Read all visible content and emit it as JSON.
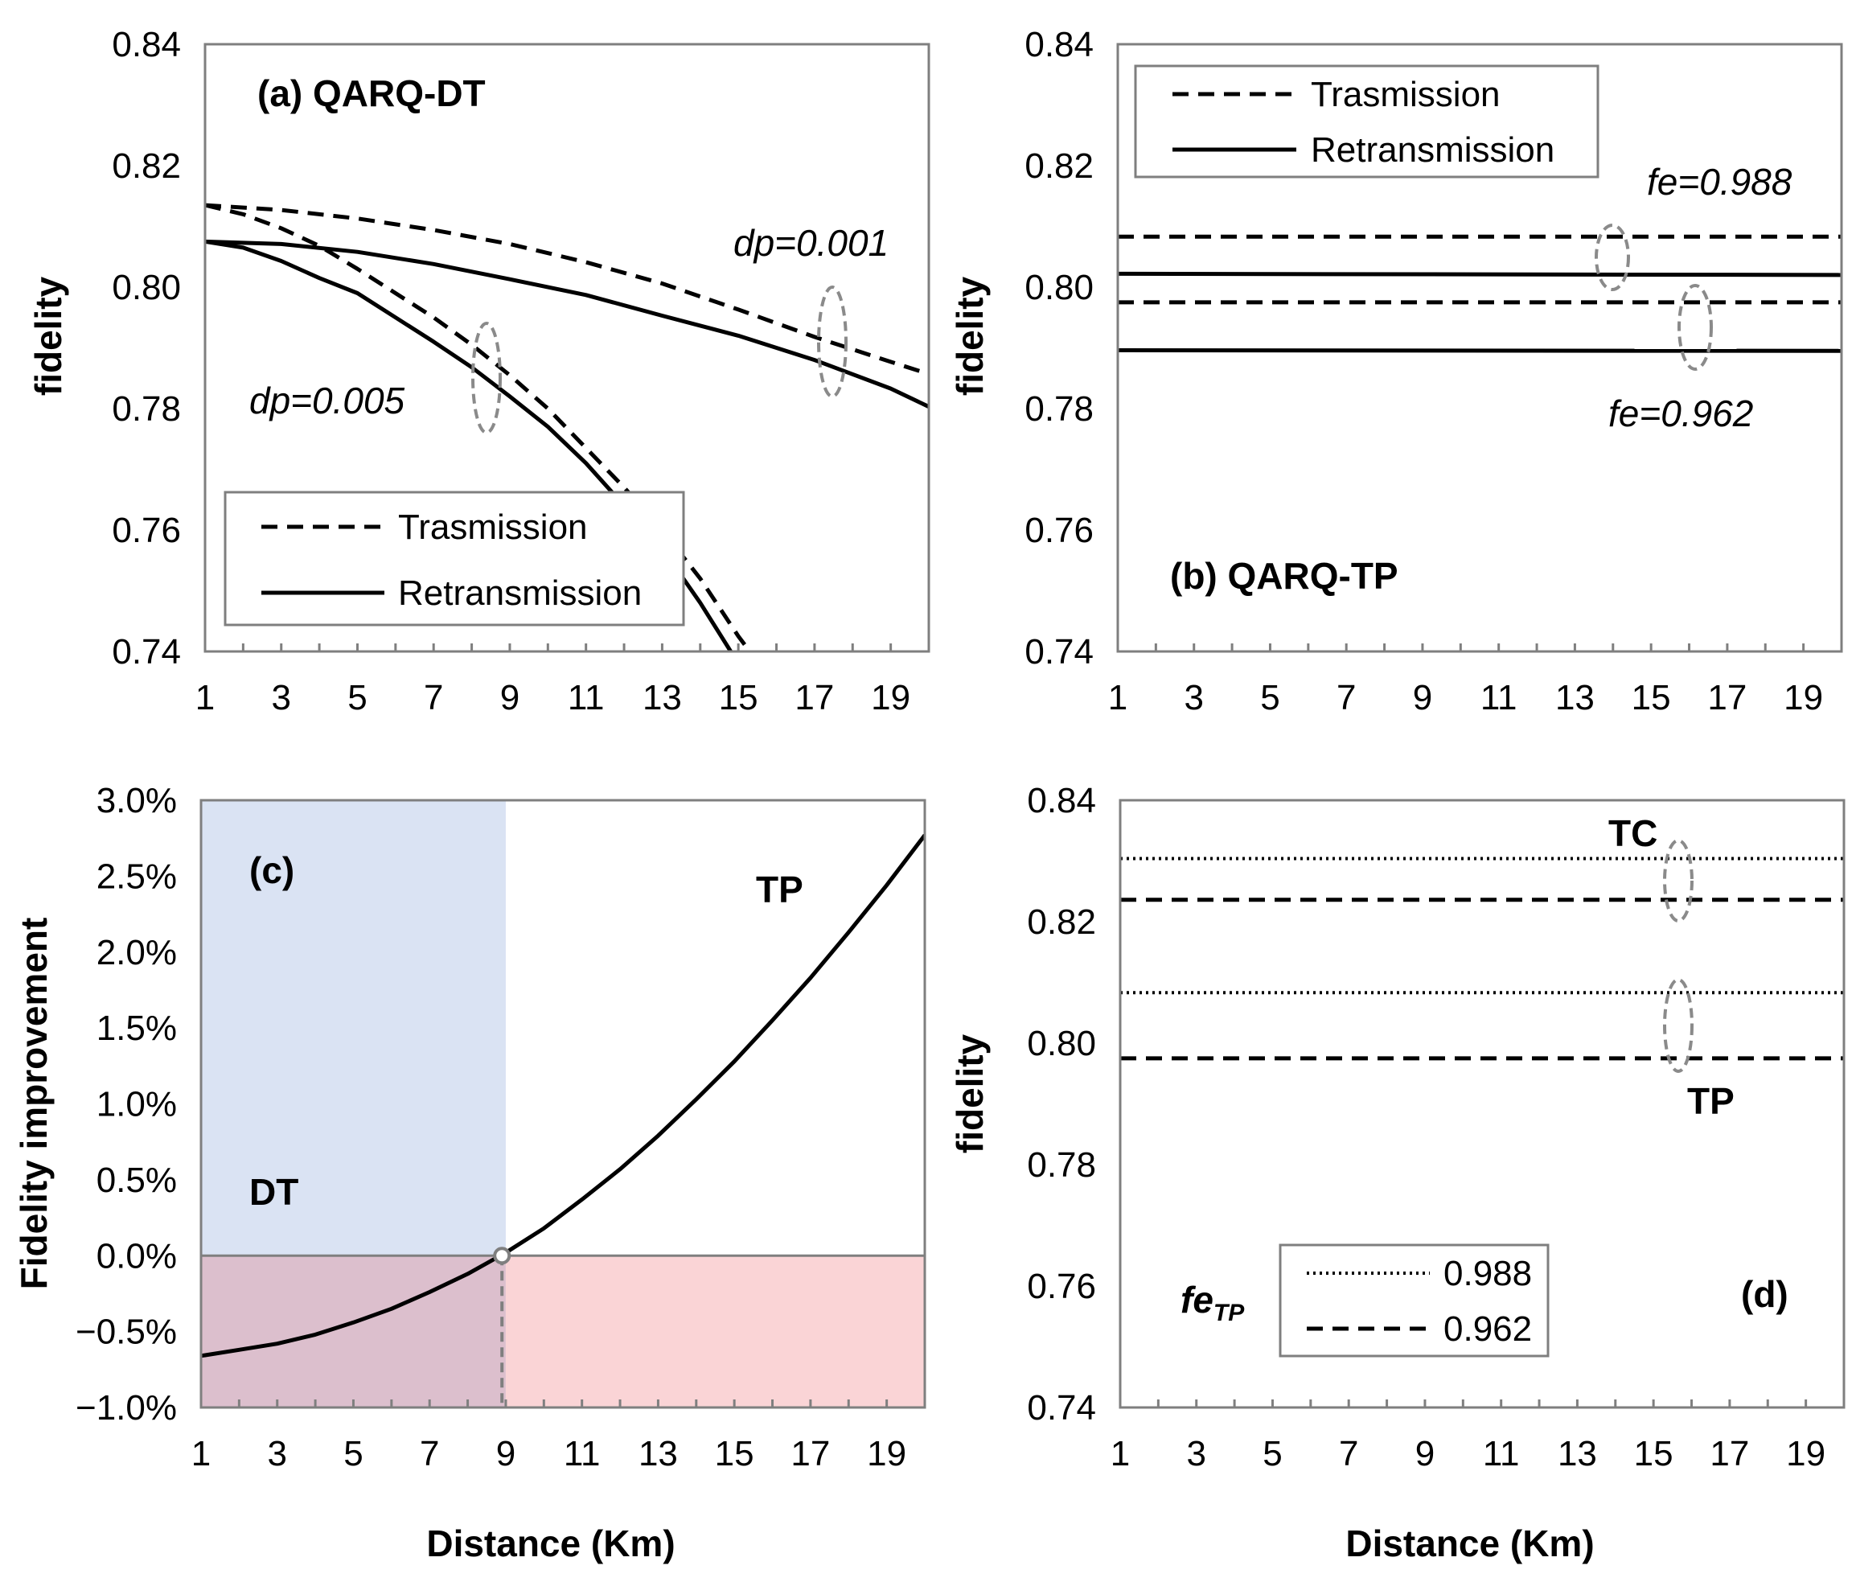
{
  "chart_data": [
    {
      "id": "a",
      "type": "line",
      "title": "(a) QARQ-DT",
      "xlabel": "",
      "ylabel": "fidelity",
      "xlim": [
        1,
        20
      ],
      "ylim": [
        0.74,
        0.84
      ],
      "xticks": [
        "1",
        "3",
        "5",
        "7",
        "9",
        "11",
        "13",
        "15",
        "17",
        "19"
      ],
      "yticks": [
        "0.74",
        "0.76",
        "0.78",
        "0.80",
        "0.82",
        "0.84"
      ],
      "legend": {
        "position": "bottom-left",
        "entries": [
          {
            "label": "Trasmission",
            "style": "dashed"
          },
          {
            "label": "Retransmission",
            "style": "solid"
          }
        ]
      },
      "annotations": [
        "dp=0.001",
        "dp=0.005"
      ],
      "series": [
        {
          "name": "Trasmission dp=0.001",
          "style": "dashed",
          "x": [
            1,
            3,
            5,
            7,
            9,
            11,
            13,
            15,
            17,
            19,
            20
          ],
          "y": [
            0.8135,
            0.8127,
            0.8113,
            0.8094,
            0.8071,
            0.8041,
            0.8006,
            0.7963,
            0.7918,
            0.7877,
            0.7857
          ]
        },
        {
          "name": "Retransmission dp=0.001",
          "style": "solid",
          "x": [
            1,
            3,
            5,
            7,
            9,
            11,
            13,
            15,
            17,
            19,
            20
          ],
          "y": [
            0.8075,
            0.8071,
            0.8058,
            0.8038,
            0.8013,
            0.7987,
            0.7953,
            0.792,
            0.788,
            0.7833,
            0.7803
          ]
        },
        {
          "name": "Trasmission dp=0.005",
          "style": "dashed",
          "x": [
            1,
            2,
            3,
            4,
            5,
            6,
            7,
            8,
            9,
            10,
            11,
            12,
            13,
            14,
            15,
            15.3
          ],
          "y": [
            0.8135,
            0.812,
            0.8097,
            0.8068,
            0.803,
            0.799,
            0.795,
            0.7905,
            0.7855,
            0.78,
            0.7735,
            0.767,
            0.76,
            0.752,
            0.7425,
            0.74
          ]
        },
        {
          "name": "Retransmission dp=0.005",
          "style": "solid",
          "x": [
            1,
            2,
            3,
            4,
            5,
            6,
            7,
            8,
            9,
            10,
            11,
            12,
            13,
            14,
            14.8
          ],
          "y": [
            0.8075,
            0.8065,
            0.8043,
            0.8015,
            0.799,
            0.795,
            0.791,
            0.7868,
            0.782,
            0.777,
            0.771,
            0.764,
            0.757,
            0.748,
            0.74
          ]
        }
      ]
    },
    {
      "id": "b",
      "type": "line",
      "title": "(b) QARQ-TP",
      "xlabel": "",
      "ylabel": "fidelity",
      "xlim": [
        1,
        20
      ],
      "ylim": [
        0.74,
        0.84
      ],
      "xticks": [
        "1",
        "3",
        "5",
        "7",
        "9",
        "11",
        "13",
        "15",
        "17",
        "19"
      ],
      "yticks": [
        "0.74",
        "0.76",
        "0.78",
        "0.80",
        "0.82",
        "0.84"
      ],
      "legend": {
        "position": "top-left",
        "entries": [
          {
            "label": "Trasmission",
            "style": "dashed"
          },
          {
            "label": "Retransmission",
            "style": "solid"
          }
        ]
      },
      "annotations": [
        "fe=0.988",
        "fe=0.962"
      ],
      "series": [
        {
          "name": "Trasmission fe=0.988",
          "style": "dashed",
          "x": [
            1,
            20
          ],
          "y": [
            0.8083,
            0.8083
          ]
        },
        {
          "name": "Retransmission fe=0.988",
          "style": "solid",
          "x": [
            1,
            20
          ],
          "y": [
            0.8022,
            0.802
          ]
        },
        {
          "name": "Trasmission fe=0.962",
          "style": "dashed",
          "x": [
            1,
            20
          ],
          "y": [
            0.7975,
            0.7975
          ]
        },
        {
          "name": "Retransmission fe=0.962",
          "style": "solid",
          "x": [
            1,
            20
          ],
          "y": [
            0.7896,
            0.7895
          ]
        }
      ]
    },
    {
      "id": "c",
      "type": "line",
      "title": "(c)",
      "xlabel": "Distance (Km)",
      "ylabel": "Fidelity improvement",
      "xlim": [
        1,
        20
      ],
      "ylim": [
        -1.0,
        3.0
      ],
      "xticks": [
        "1",
        "3",
        "5",
        "7",
        "9",
        "11",
        "13",
        "15",
        "17",
        "19"
      ],
      "yticks": [
        "−1.0%",
        "−0.5%",
        "0.0%",
        "0.5%",
        "1.0%",
        "1.5%",
        "2.0%",
        "2.5%",
        "3.0%"
      ],
      "regions": [
        {
          "label": "DT",
          "x": [
            1,
            9
          ],
          "y": [
            0,
            3.0
          ],
          "color": "#dae3f3"
        },
        {
          "label": "",
          "x": [
            1,
            9
          ],
          "y": [
            -1.0,
            0
          ],
          "color": "#dcbfcd"
        },
        {
          "label": "",
          "x": [
            9,
            20
          ],
          "y": [
            -1.0,
            0
          ],
          "color": "#fad4d6"
        }
      ],
      "annotations": [
        "TP",
        "DT"
      ],
      "crossover": {
        "x": 8.9,
        "y": 0.0
      },
      "series": [
        {
          "name": "TP improvement",
          "style": "solid",
          "x": [
            1,
            2,
            3,
            4,
            5,
            6,
            7,
            8,
            9,
            10,
            11,
            12,
            13,
            14,
            15,
            16,
            17,
            18,
            19,
            20
          ],
          "y": [
            -0.66,
            -0.62,
            -0.58,
            -0.52,
            -0.44,
            -0.35,
            -0.24,
            -0.12,
            0.02,
            0.18,
            0.37,
            0.57,
            0.79,
            1.03,
            1.28,
            1.55,
            1.83,
            2.13,
            2.44,
            2.77
          ]
        }
      ]
    },
    {
      "id": "d",
      "type": "line",
      "title": "(d)",
      "xlabel": "Distance (Km)",
      "ylabel": "fidelity",
      "xlim": [
        1,
        20
      ],
      "ylim": [
        0.74,
        0.84
      ],
      "xticks": [
        "1",
        "3",
        "5",
        "7",
        "9",
        "11",
        "13",
        "15",
        "17",
        "19"
      ],
      "yticks": [
        "0.74",
        "0.76",
        "0.78",
        "0.80",
        "0.82",
        "0.84"
      ],
      "legend": {
        "position": "bottom-center",
        "title": "fe",
        "title_sub": "TP",
        "entries": [
          {
            "label": "0.988",
            "style": "dotted"
          },
          {
            "label": "0.962",
            "style": "dashed"
          }
        ]
      },
      "annotations": [
        "TC",
        "TP"
      ],
      "series": [
        {
          "name": "TC 0.988",
          "style": "dotted",
          "x": [
            1,
            20
          ],
          "y": [
            0.8304,
            0.8304
          ]
        },
        {
          "name": "TC 0.962",
          "style": "dashed",
          "x": [
            1,
            20
          ],
          "y": [
            0.8236,
            0.8236
          ]
        },
        {
          "name": "TP 0.988",
          "style": "dotted",
          "x": [
            1,
            20
          ],
          "y": [
            0.8083,
            0.8083
          ]
        },
        {
          "name": "TP 0.962",
          "style": "dashed",
          "x": [
            1,
            20
          ],
          "y": [
            0.7975,
            0.7975
          ]
        }
      ]
    }
  ]
}
